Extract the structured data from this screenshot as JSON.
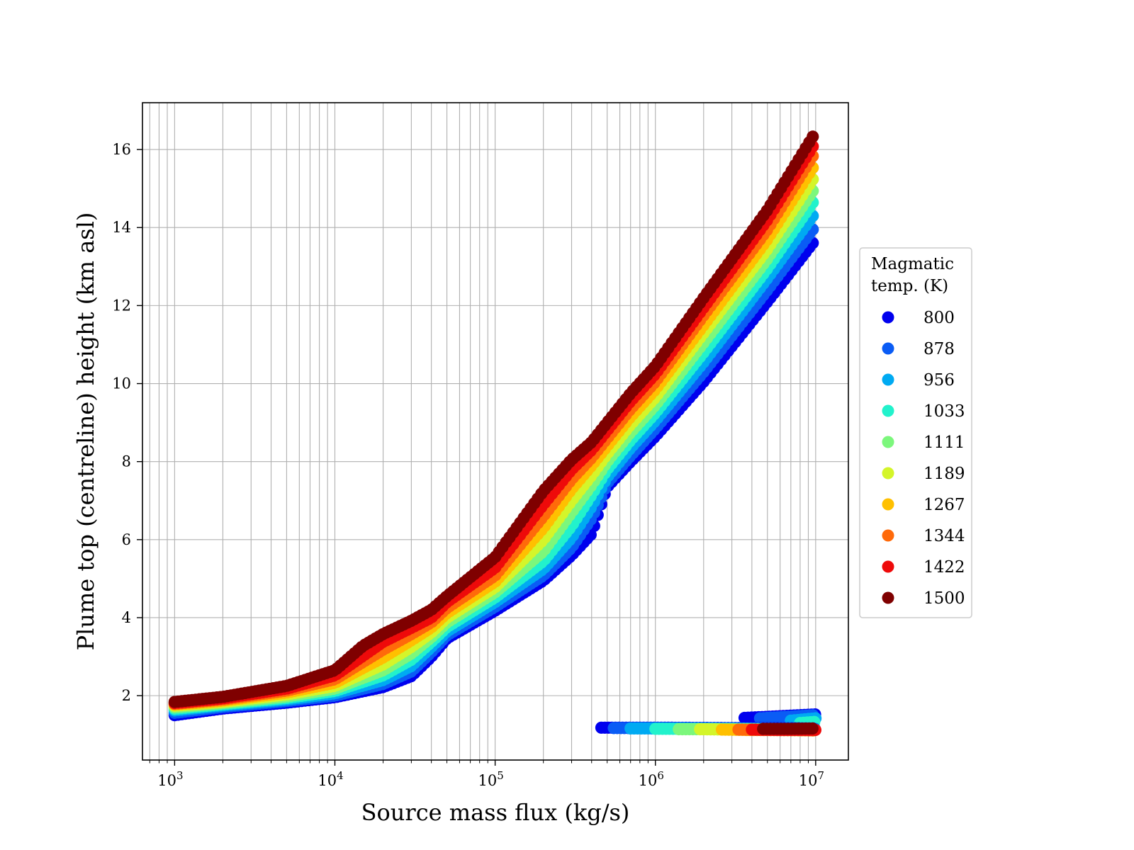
{
  "chart_data": {
    "type": "scatter",
    "xlabel": "Source mass flux (kg/s)",
    "ylabel": "Plume top (centreline) height (km asl)",
    "xscale": "log",
    "xlim": [
      630,
      16000000
    ],
    "ylim": [
      0.35,
      17.2
    ],
    "xticks": [
      {
        "value": 1000,
        "base": "10",
        "exp": "3"
      },
      {
        "value": 10000,
        "base": "10",
        "exp": "4"
      },
      {
        "value": 100000,
        "base": "10",
        "exp": "5"
      },
      {
        "value": 1000000,
        "base": "10",
        "exp": "6"
      },
      {
        "value": 10000000,
        "base": "10",
        "exp": "7"
      }
    ],
    "yticks": [
      2,
      4,
      6,
      8,
      10,
      12,
      14,
      16
    ],
    "grid": true,
    "legend": {
      "title_lines": [
        "Magmatic",
        "temp. (K)"
      ],
      "placement": "right, outside plot"
    },
    "series": [
      {
        "name": "800",
        "color": "#0000ee",
        "main": [
          [
            1000,
            1.5
          ],
          [
            2000,
            1.67
          ],
          [
            5000,
            1.82
          ],
          [
            10000,
            1.96
          ],
          [
            20000,
            2.22
          ],
          [
            30000,
            2.5
          ],
          [
            40000,
            3.0
          ],
          [
            50000,
            3.47
          ],
          [
            100000,
            4.18
          ],
          [
            200000,
            4.95
          ],
          [
            300000,
            5.6
          ],
          [
            400000,
            6.15
          ],
          [
            450000,
            6.8
          ],
          [
            500000,
            7.35
          ],
          [
            700000,
            8.0
          ],
          [
            1000000,
            8.65
          ],
          [
            2000000,
            10.05
          ],
          [
            5000000,
            12.1
          ],
          [
            10000000,
            13.7
          ]
        ],
        "low": [
          [
            460000,
            1.18
          ],
          [
            1000000,
            1.18
          ],
          [
            3000000,
            1.17
          ],
          [
            10000000,
            1.16
          ]
        ],
        "high": [
          [
            3600000,
            1.43
          ],
          [
            10000000,
            1.52
          ]
        ]
      },
      {
        "name": "878",
        "color": "#0a5cf5",
        "main": [
          [
            1000,
            1.56
          ],
          [
            2000,
            1.71
          ],
          [
            5000,
            1.86
          ],
          [
            10000,
            2.0
          ],
          [
            20000,
            2.3
          ],
          [
            30000,
            2.62
          ],
          [
            40000,
            3.12
          ],
          [
            50000,
            3.55
          ],
          [
            100000,
            4.28
          ],
          [
            200000,
            5.08
          ],
          [
            300000,
            5.8
          ],
          [
            400000,
            6.55
          ],
          [
            450000,
            7.0
          ],
          [
            500000,
            7.45
          ],
          [
            700000,
            8.15
          ],
          [
            1000000,
            8.85
          ],
          [
            2000000,
            10.3
          ],
          [
            5000000,
            12.4
          ],
          [
            10000000,
            14.05
          ]
        ],
        "low": [
          [
            550000,
            1.17
          ],
          [
            1000000,
            1.17
          ],
          [
            3000000,
            1.16
          ],
          [
            10000000,
            1.15
          ]
        ],
        "high": [
          [
            4500000,
            1.42
          ],
          [
            10000000,
            1.5
          ]
        ]
      },
      {
        "name": "956",
        "color": "#00aaf2",
        "main": [
          [
            1000,
            1.62
          ],
          [
            2000,
            1.75
          ],
          [
            5000,
            1.9
          ],
          [
            10000,
            2.06
          ],
          [
            20000,
            2.4
          ],
          [
            30000,
            2.76
          ],
          [
            40000,
            3.25
          ],
          [
            50000,
            3.65
          ],
          [
            100000,
            4.4
          ],
          [
            200000,
            5.25
          ],
          [
            300000,
            6.05
          ],
          [
            400000,
            6.85
          ],
          [
            500000,
            7.6
          ],
          [
            700000,
            8.35
          ],
          [
            1000000,
            9.05
          ],
          [
            2000000,
            10.55
          ],
          [
            5000000,
            12.7
          ],
          [
            10000000,
            14.4
          ]
        ],
        "low": [
          [
            700000,
            1.16
          ],
          [
            1500000,
            1.16
          ],
          [
            4000000,
            1.15
          ],
          [
            10000000,
            1.14
          ]
        ],
        "high": [
          [
            7000000,
            1.36
          ],
          [
            10000000,
            1.42
          ]
        ]
      },
      {
        "name": "1033",
        "color": "#22f2cc",
        "main": [
          [
            1000,
            1.66
          ],
          [
            2000,
            1.78
          ],
          [
            5000,
            1.94
          ],
          [
            10000,
            2.12
          ],
          [
            20000,
            2.52
          ],
          [
            30000,
            2.92
          ],
          [
            40000,
            3.38
          ],
          [
            50000,
            3.76
          ],
          [
            100000,
            4.52
          ],
          [
            200000,
            5.45
          ],
          [
            300000,
            6.35
          ],
          [
            400000,
            7.15
          ],
          [
            500000,
            7.8
          ],
          [
            700000,
            8.55
          ],
          [
            1000000,
            9.25
          ],
          [
            2000000,
            10.8
          ],
          [
            5000000,
            12.95
          ],
          [
            10000000,
            14.75
          ]
        ],
        "low": [
          [
            1000000,
            1.15
          ],
          [
            2000000,
            1.15
          ],
          [
            5000000,
            1.14
          ],
          [
            10000000,
            1.13
          ]
        ],
        "high": [
          [
            8000000,
            1.3
          ],
          [
            10000000,
            1.33
          ]
        ]
      },
      {
        "name": "1111",
        "color": "#7cf77c",
        "main": [
          [
            1000,
            1.7
          ],
          [
            2000,
            1.81
          ],
          [
            5000,
            1.98
          ],
          [
            10000,
            2.18
          ],
          [
            20000,
            2.65
          ],
          [
            30000,
            3.08
          ],
          [
            40000,
            3.5
          ],
          [
            50000,
            3.88
          ],
          [
            100000,
            4.65
          ],
          [
            200000,
            5.7
          ],
          [
            300000,
            6.7
          ],
          [
            400000,
            7.4
          ],
          [
            500000,
            8.0
          ],
          [
            700000,
            8.75
          ],
          [
            1000000,
            9.45
          ],
          [
            2000000,
            11.05
          ],
          [
            5000000,
            13.2
          ],
          [
            10000000,
            15.05
          ]
        ],
        "low": [
          [
            1400000,
            1.14
          ],
          [
            2500000,
            1.14
          ],
          [
            5000000,
            1.13
          ],
          [
            10000000,
            1.12
          ]
        ],
        "high": []
      },
      {
        "name": "1189",
        "color": "#d4f52a",
        "main": [
          [
            1000,
            1.74
          ],
          [
            2000,
            1.84
          ],
          [
            5000,
            2.03
          ],
          [
            10000,
            2.25
          ],
          [
            20000,
            2.8
          ],
          [
            30000,
            3.25
          ],
          [
            40000,
            3.62
          ],
          [
            50000,
            4.0
          ],
          [
            100000,
            4.78
          ],
          [
            200000,
            6.0
          ],
          [
            300000,
            7.0
          ],
          [
            400000,
            7.65
          ],
          [
            500000,
            8.2
          ],
          [
            700000,
            8.95
          ],
          [
            1000000,
            9.65
          ],
          [
            2000000,
            11.3
          ],
          [
            5000000,
            13.45
          ],
          [
            10000000,
            15.35
          ]
        ],
        "low": [
          [
            1900000,
            1.14
          ],
          [
            3000000,
            1.13
          ],
          [
            6000000,
            1.12
          ],
          [
            10000000,
            1.11
          ]
        ],
        "high": []
      },
      {
        "name": "1267",
        "color": "#ffc000",
        "main": [
          [
            1000,
            1.77
          ],
          [
            2000,
            1.87
          ],
          [
            5000,
            2.08
          ],
          [
            10000,
            2.33
          ],
          [
            20000,
            2.98
          ],
          [
            30000,
            3.42
          ],
          [
            40000,
            3.75
          ],
          [
            50000,
            4.12
          ],
          [
            100000,
            4.92
          ],
          [
            200000,
            6.3
          ],
          [
            300000,
            7.3
          ],
          [
            400000,
            7.9
          ],
          [
            500000,
            8.4
          ],
          [
            700000,
            9.15
          ],
          [
            1000000,
            9.85
          ],
          [
            2000000,
            11.5
          ],
          [
            5000000,
            13.7
          ],
          [
            10000000,
            15.65
          ]
        ],
        "low": [
          [
            2600000,
            1.13
          ],
          [
            4000000,
            1.12
          ],
          [
            7000000,
            1.12
          ],
          [
            10000000,
            1.11
          ]
        ],
        "high": []
      },
      {
        "name": "1344",
        "color": "#ff6a0a",
        "main": [
          [
            1000,
            1.79
          ],
          [
            2000,
            1.9
          ],
          [
            5000,
            2.13
          ],
          [
            10000,
            2.42
          ],
          [
            20000,
            3.18
          ],
          [
            30000,
            3.58
          ],
          [
            40000,
            3.88
          ],
          [
            50000,
            4.25
          ],
          [
            100000,
            5.08
          ],
          [
            200000,
            6.6
          ],
          [
            300000,
            7.55
          ],
          [
            400000,
            8.1
          ],
          [
            500000,
            8.6
          ],
          [
            700000,
            9.35
          ],
          [
            1000000,
            10.05
          ],
          [
            2000000,
            11.75
          ],
          [
            5000000,
            13.95
          ],
          [
            10000000,
            15.95
          ]
        ],
        "low": [
          [
            3300000,
            1.13
          ],
          [
            5000000,
            1.12
          ],
          [
            8000000,
            1.12
          ],
          [
            10000000,
            1.11
          ]
        ],
        "high": []
      },
      {
        "name": "1422",
        "color": "#ee0a0a",
        "main": [
          [
            1000,
            1.81
          ],
          [
            2000,
            1.93
          ],
          [
            5000,
            2.18
          ],
          [
            10000,
            2.52
          ],
          [
            20000,
            3.38
          ],
          [
            30000,
            3.74
          ],
          [
            40000,
            4.0
          ],
          [
            50000,
            4.4
          ],
          [
            100000,
            5.28
          ],
          [
            200000,
            6.9
          ],
          [
            300000,
            7.8
          ],
          [
            400000,
            8.3
          ],
          [
            500000,
            8.8
          ],
          [
            700000,
            9.55
          ],
          [
            1000000,
            10.25
          ],
          [
            2000000,
            11.95
          ],
          [
            5000000,
            14.2
          ],
          [
            10000000,
            16.2
          ]
        ],
        "low": [
          [
            4000000,
            1.13
          ],
          [
            6000000,
            1.12
          ],
          [
            8500000,
            1.12
          ],
          [
            10000000,
            1.12
          ]
        ],
        "high": []
      },
      {
        "name": "1500",
        "color": "#7f0000",
        "main": [
          [
            1000,
            1.84
          ],
          [
            2000,
            1.97
          ],
          [
            5000,
            2.25
          ],
          [
            10000,
            2.65
          ],
          [
            15000,
            3.28
          ],
          [
            20000,
            3.58
          ],
          [
            30000,
            3.92
          ],
          [
            40000,
            4.2
          ],
          [
            50000,
            4.55
          ],
          [
            100000,
            5.55
          ],
          [
            200000,
            7.25
          ],
          [
            300000,
            8.05
          ],
          [
            400000,
            8.5
          ],
          [
            500000,
            9.0
          ],
          [
            700000,
            9.75
          ],
          [
            1000000,
            10.45
          ],
          [
            2000000,
            12.2
          ],
          [
            5000000,
            14.45
          ],
          [
            10000000,
            16.45
          ]
        ],
        "low": [
          [
            4700000,
            1.15
          ],
          [
            7000000,
            1.15
          ],
          [
            10000000,
            1.16
          ]
        ],
        "high": []
      }
    ]
  }
}
